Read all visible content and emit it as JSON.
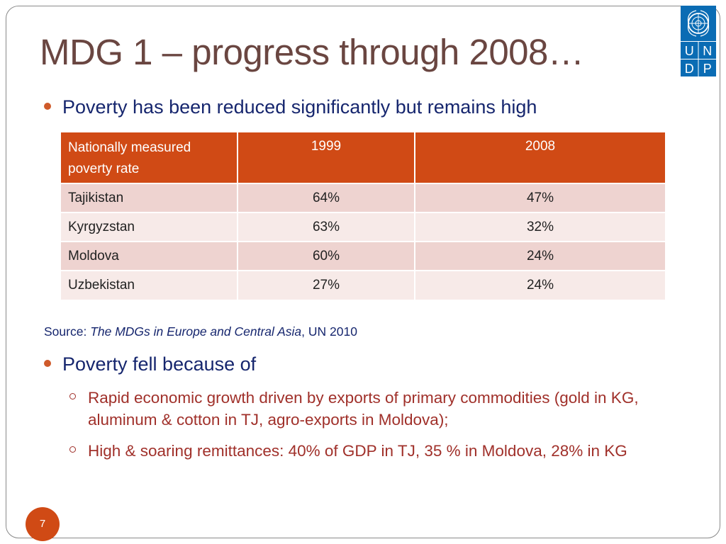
{
  "slide": {
    "title": "MDG 1 – progress through 2008…",
    "bullet1": "Poverty has been reduced significantly but remains high",
    "bullet2": "Poverty fell because of",
    "sub1": "Rapid economic growth driven by exports of primary commodities (gold in KG, aluminum & cotton in TJ, agro-exports in Moldova);",
    "sub2": "High & soaring remittances: 40% of GDP in TJ, 35 % in Moldova, 28% in KG",
    "page_number": "7"
  },
  "source": {
    "prefix": "Source: ",
    "title": "The MDGs in Europe and Central Asia",
    "suffix": ", UN 2010"
  },
  "table": {
    "headers": [
      "Nationally measured poverty rate",
      "1999",
      "2008"
    ],
    "rows": [
      [
        "Tajikistan",
        "64%",
        "47%"
      ],
      [
        "Kyrgyzstan",
        "63%",
        "32%"
      ],
      [
        "Moldova",
        "60%",
        "24%"
      ],
      [
        "Uzbekistan",
        "27%",
        "24%"
      ]
    ]
  },
  "logo": {
    "letters": [
      "U",
      "N",
      "D",
      "P"
    ],
    "color": "#0a6cb4",
    "icon": "un-emblem-icon"
  },
  "colors": {
    "title": "#6a4641",
    "bullet_text": "#16266e",
    "sub_text": "#a0302a",
    "accent": "#d04a15",
    "row_odd": "#eed3d0",
    "row_even": "#f7eae8"
  }
}
